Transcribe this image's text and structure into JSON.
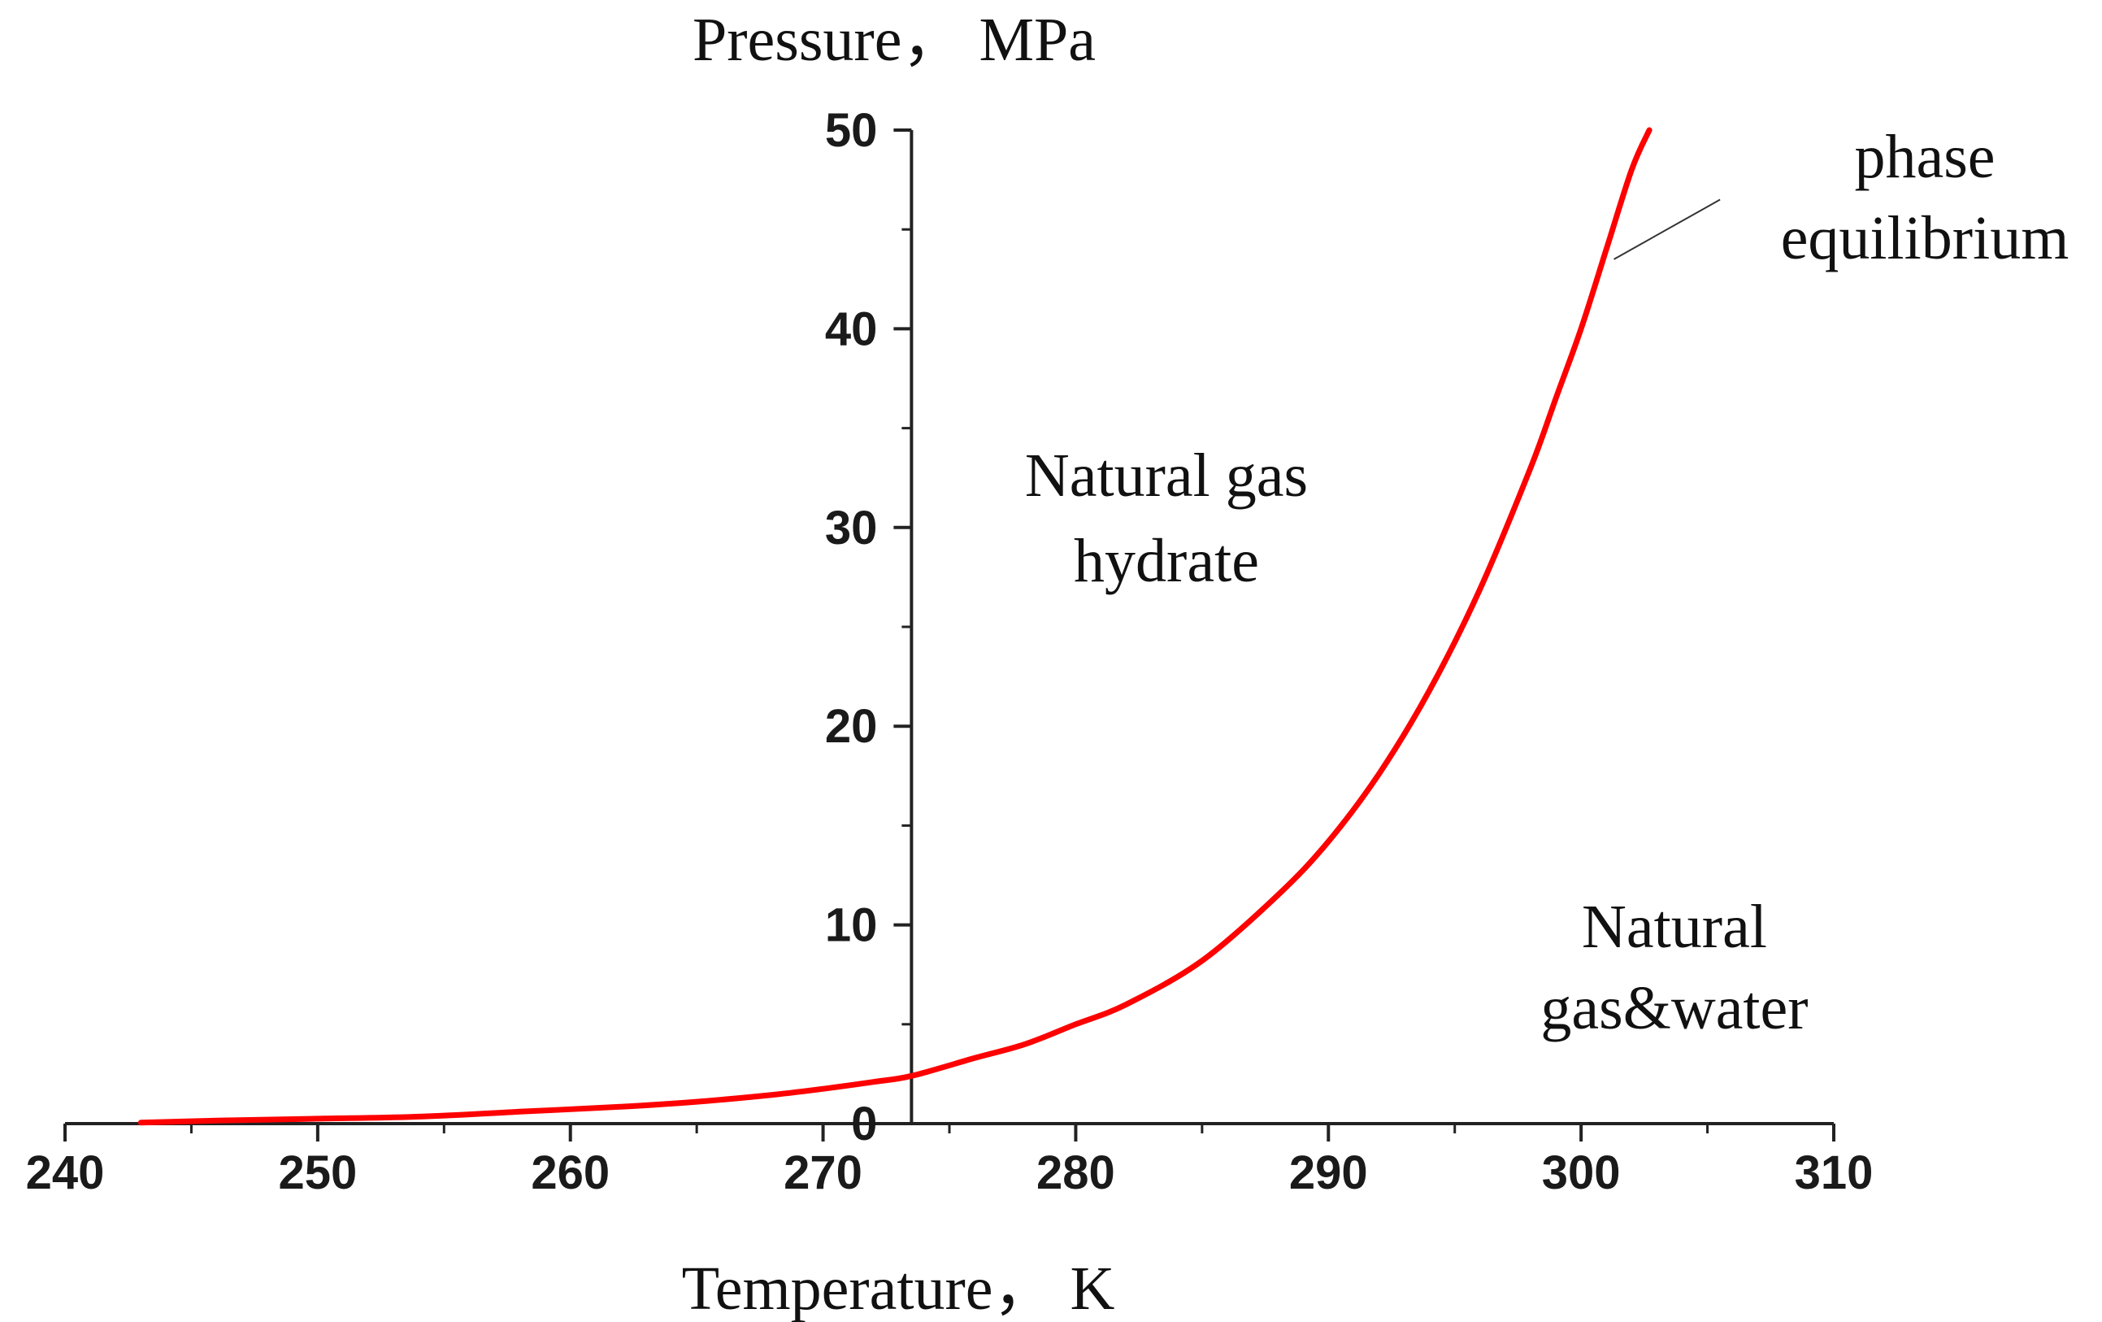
{
  "chart_data": {
    "type": "line",
    "title": "",
    "xlabel": "Temperature， K",
    "ylabel": "Pressure， MPa",
    "xlim": [
      240,
      310
    ],
    "ylim": [
      0,
      50
    ],
    "x_ticks": [
      240,
      250,
      260,
      270,
      280,
      290,
      300,
      310
    ],
    "y_ticks": [
      0,
      10,
      20,
      30,
      40,
      50
    ],
    "y_axis_crossing_x": 273.5,
    "grid": false,
    "series": [
      {
        "name": "phase equilibrium",
        "color": "#ff0000",
        "x": [
          243,
          246,
          250,
          254,
          258,
          262,
          265,
          268,
          270,
          272,
          273.5,
          276,
          278,
          280,
          282,
          285,
          288,
          290,
          292,
          294,
          296,
          298,
          299,
          300,
          301,
          302,
          302.7
        ],
        "y": [
          0.05,
          0.15,
          0.25,
          0.35,
          0.6,
          0.85,
          1.1,
          1.45,
          1.75,
          2.1,
          2.4,
          3.3,
          4.0,
          5.0,
          6.0,
          8.2,
          11.5,
          14.2,
          17.6,
          21.8,
          26.9,
          33.0,
          36.5,
          40.0,
          44.0,
          48.0,
          50.0
        ]
      }
    ],
    "annotations": [
      {
        "id": "hydrate",
        "lines": [
          "Natural gas",
          "hydrate"
        ]
      },
      {
        "id": "gas-water",
        "lines": [
          "Natural",
          "gas&water"
        ]
      },
      {
        "id": "phase",
        "lines": [
          "phase",
          "equilibrium"
        ],
        "leader_from": [
          301.3,
          43.5
        ],
        "leader_to": [
          305.5,
          46.5
        ]
      }
    ]
  }
}
